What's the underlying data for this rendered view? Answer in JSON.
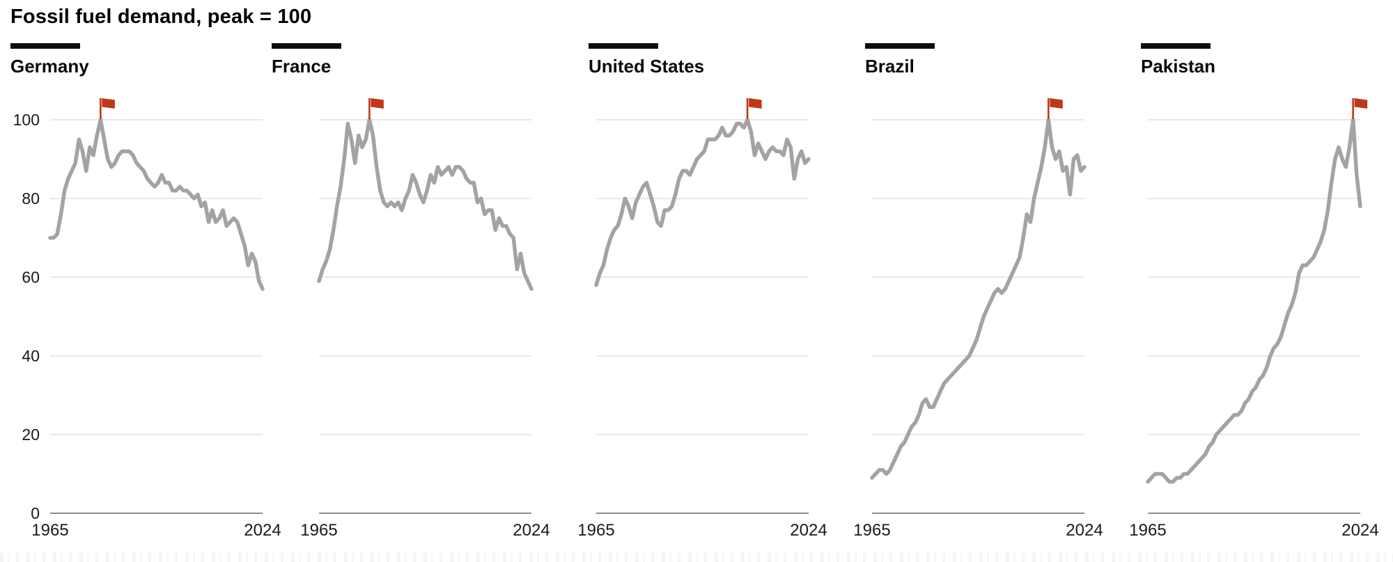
{
  "title": "Fossil fuel demand, peak = 100",
  "colors": {
    "line": "#a3a3a3",
    "flag": "#bf3817",
    "grid": "#d9d9d9",
    "axis_baseline": "#8c8c8c",
    "text": "#1a1a1a",
    "tick_bar": "#0d0d0d"
  },
  "axis": {
    "y_ticks": [
      0,
      20,
      40,
      60,
      80,
      100
    ],
    "ylim": [
      0,
      100
    ],
    "x_tick_start": "1965",
    "x_tick_end": "2024",
    "grid": "horizontal-only",
    "y_labels_shown_on_first_panel_only": true
  },
  "peak_marker_icon": "red-flag-icon",
  "chart_data": {
    "type": "line",
    "layout": "small-multiples-row",
    "x_start": 1965,
    "x_end": 2024,
    "x_step_years": 1,
    "series": [
      {
        "name": "Germany",
        "peak_year": 1979,
        "values": [
          70,
          70,
          71,
          76,
          82,
          85,
          87,
          89,
          95,
          92,
          87,
          93,
          91,
          96,
          100,
          95,
          90,
          88,
          89,
          91,
          92,
          92,
          92,
          91,
          89,
          88,
          87,
          85,
          84,
          83,
          84,
          86,
          84,
          84,
          82,
          82,
          83,
          82,
          82,
          81,
          80,
          81,
          78,
          79,
          74,
          77,
          74,
          75,
          77,
          73,
          74,
          75,
          74,
          71,
          68,
          63,
          66,
          64,
          59,
          57
        ]
      },
      {
        "name": "France",
        "peak_year": 1979,
        "values": [
          59,
          62,
          64,
          67,
          72,
          78,
          83,
          90,
          99,
          95,
          89,
          96,
          93,
          95,
          100,
          96,
          88,
          82,
          79,
          78,
          79,
          78,
          79,
          77,
          80,
          82,
          86,
          84,
          81,
          79,
          82,
          86,
          84,
          88,
          86,
          87,
          88,
          86,
          88,
          88,
          87,
          85,
          84,
          84,
          79,
          80,
          76,
          77,
          77,
          72,
          75,
          73,
          73,
          71,
          70,
          62,
          66,
          61,
          59,
          57
        ]
      },
      {
        "name": "United States",
        "peak_year": 2007,
        "values": [
          58,
          61,
          63,
          67,
          70,
          72,
          73,
          76,
          80,
          78,
          75,
          79,
          81,
          83,
          84,
          81,
          78,
          74,
          73,
          77,
          77,
          78,
          81,
          85,
          87,
          87,
          86,
          88,
          90,
          91,
          92,
          95,
          95,
          95,
          96,
          98,
          96,
          96,
          97,
          99,
          99,
          98,
          100,
          97,
          91,
          94,
          92,
          90,
          92,
          93,
          92,
          92,
          91,
          95,
          93,
          85,
          90,
          92,
          89,
          90
        ]
      },
      {
        "name": "Brazil",
        "peak_year": 2014,
        "values": [
          9,
          10,
          11,
          11,
          10,
          11,
          13,
          15,
          17,
          18,
          20,
          22,
          23,
          25,
          28,
          29,
          27,
          27,
          29,
          31,
          33,
          34,
          35,
          36,
          37,
          38,
          39,
          40,
          42,
          44,
          47,
          50,
          52,
          54,
          56,
          57,
          56,
          57,
          59,
          61,
          63,
          65,
          70,
          76,
          74,
          80,
          84,
          88,
          93,
          100,
          93,
          90,
          92,
          87,
          88,
          81,
          90,
          91,
          87,
          88
        ]
      },
      {
        "name": "Pakistan",
        "peak_year": 2022,
        "values": [
          8,
          9,
          10,
          10,
          10,
          9,
          8,
          8,
          9,
          9,
          10,
          10,
          11,
          12,
          13,
          14,
          15,
          17,
          18,
          20,
          21,
          22,
          23,
          24,
          25,
          25,
          26,
          28,
          29,
          31,
          32,
          34,
          35,
          37,
          40,
          42,
          43,
          45,
          48,
          51,
          53,
          56,
          61,
          63,
          63,
          64,
          65,
          67,
          69,
          72,
          77,
          84,
          90,
          93,
          90,
          88,
          93,
          100,
          86,
          78
        ]
      }
    ]
  }
}
